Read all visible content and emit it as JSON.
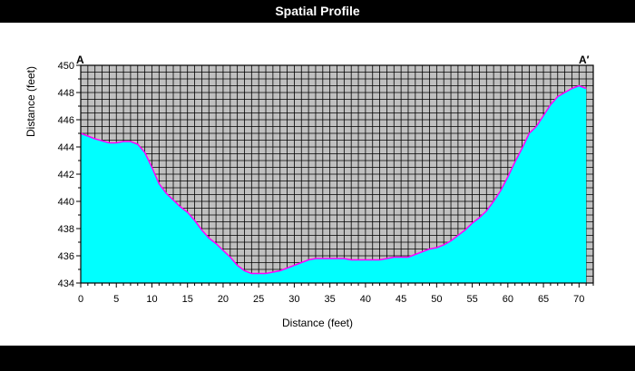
{
  "title": "Spatial Profile",
  "chart_data": {
    "type": "area",
    "title": "Spatial Profile",
    "xlabel": "Distance (feet)",
    "ylabel": "Distance (feet)",
    "xlim": [
      0,
      72
    ],
    "ylim": [
      434,
      450
    ],
    "x_ticks": [
      "0",
      "5",
      "10",
      "15",
      "20",
      "25",
      "30",
      "35",
      "40",
      "45",
      "50",
      "55",
      "60",
      "65",
      "70"
    ],
    "y_ticks": [
      "434",
      "436",
      "438",
      "440",
      "442",
      "444",
      "446",
      "448",
      "450"
    ],
    "grid": true,
    "start_label": "A",
    "end_label": "A′",
    "series": [
      {
        "x": [
          0,
          2,
          4,
          5,
          6,
          7,
          8,
          9,
          10,
          11,
          12,
          13,
          14,
          15,
          16,
          17,
          18,
          19,
          20,
          21,
          22,
          23,
          24,
          25,
          26,
          27,
          28,
          29,
          30,
          31,
          32,
          33,
          34,
          35,
          36,
          37,
          38,
          39,
          40,
          41,
          42,
          43,
          44,
          45,
          46,
          47,
          48,
          49,
          50,
          51,
          52,
          53,
          54,
          55,
          56,
          57,
          58,
          59,
          60,
          61,
          62,
          63,
          64,
          65,
          66,
          67,
          68,
          69,
          70,
          71
        ],
        "y": [
          445.0,
          444.6,
          444.3,
          444.3,
          444.4,
          444.4,
          444.2,
          443.6,
          442.5,
          441.3,
          440.6,
          440.1,
          439.6,
          439.2,
          438.6,
          437.9,
          437.3,
          436.9,
          436.4,
          435.9,
          435.3,
          434.9,
          434.7,
          434.7,
          434.7,
          434.8,
          434.9,
          435.1,
          435.3,
          435.5,
          435.7,
          435.8,
          435.8,
          435.8,
          435.8,
          435.8,
          435.7,
          435.7,
          435.7,
          435.7,
          435.7,
          435.8,
          435.9,
          435.9,
          435.9,
          436.1,
          436.3,
          436.5,
          436.6,
          436.8,
          437.1,
          437.5,
          437.9,
          438.4,
          438.8,
          439.3,
          440.0,
          440.8,
          441.8,
          442.9,
          443.9,
          445.0,
          445.5,
          446.3,
          447.1,
          447.7,
          448.0,
          448.3,
          448.5,
          448.3
        ]
      }
    ],
    "colors": {
      "fill": "#00FFFF",
      "line": "#FF00FF",
      "grid_bg": "#C0C0C0",
      "grid_line": "#000000",
      "chrome": "#000000"
    }
  }
}
